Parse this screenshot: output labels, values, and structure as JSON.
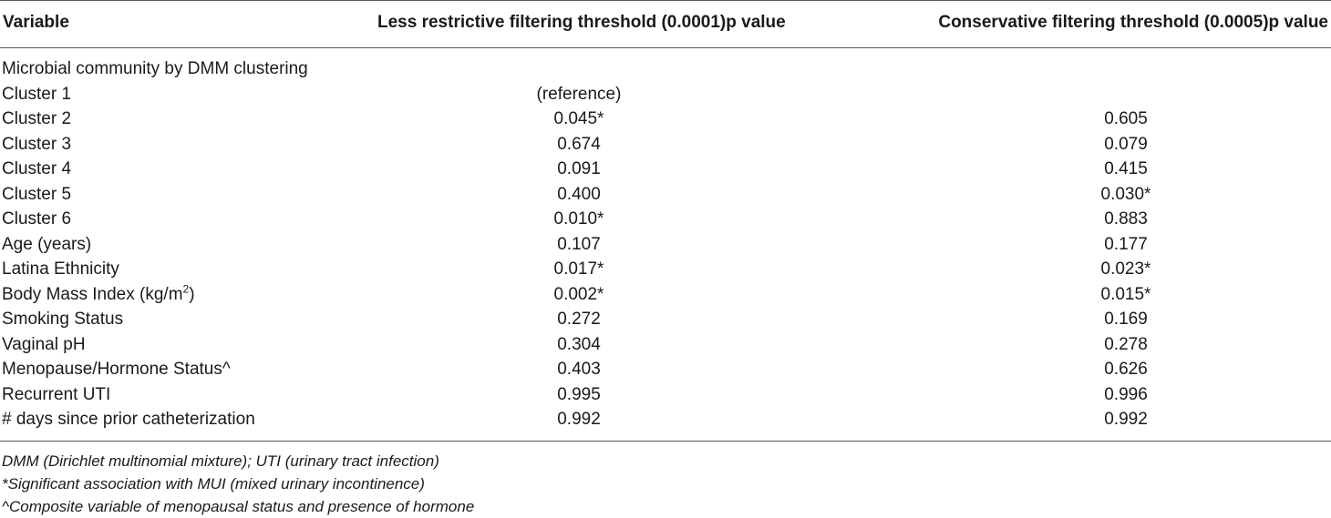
{
  "table": {
    "headers": {
      "variable": "Variable",
      "less_restrictive": "Less restrictive filtering threshold (0.0001)p value",
      "conservative": "Conservative filtering threshold (0.0005)p value"
    },
    "section_label": "Microbial community by DMM clustering",
    "rows": [
      {
        "variable": "Cluster 1",
        "less": "(reference)",
        "cons": ""
      },
      {
        "variable": "Cluster 2",
        "less": "0.045*",
        "cons": "0.605"
      },
      {
        "variable": "Cluster 3",
        "less": "0.674",
        "cons": "0.079"
      },
      {
        "variable": "Cluster 4",
        "less": "0.091",
        "cons": "0.415"
      },
      {
        "variable": "Cluster 5",
        "less": "0.400",
        "cons": "0.030*"
      },
      {
        "variable": "Cluster 6",
        "less": "0.010*",
        "cons": "0.883"
      },
      {
        "variable": "Age (years)",
        "less": "0.107",
        "cons": "0.177"
      },
      {
        "variable": "Latina Ethnicity",
        "less": "0.017*",
        "cons": "0.023*"
      },
      {
        "variable": "Body Mass Index (kg/m",
        "variable_sup": "2",
        "variable_suffix": ")",
        "less": "0.002*",
        "cons": "0.015*"
      },
      {
        "variable": "Smoking Status",
        "less": "0.272",
        "cons": "0.169"
      },
      {
        "variable": "Vaginal pH",
        "less": "0.304",
        "cons": "0.278"
      },
      {
        "variable": "Menopause/Hormone Status^",
        "less": "0.403",
        "cons": "0.626"
      },
      {
        "variable": "Recurrent UTI",
        "less": "0.995",
        "cons": "0.996"
      },
      {
        "variable": "# days since prior catheterization",
        "less": "0.992",
        "cons": "0.992"
      }
    ]
  },
  "footnotes": [
    "DMM (Dirichlet multinomial mixture); UTI (urinary tract infection)",
    "*Significant association with MUI (mixed urinary incontinence)",
    "^Composite variable of menopausal status and presence of hormone"
  ]
}
